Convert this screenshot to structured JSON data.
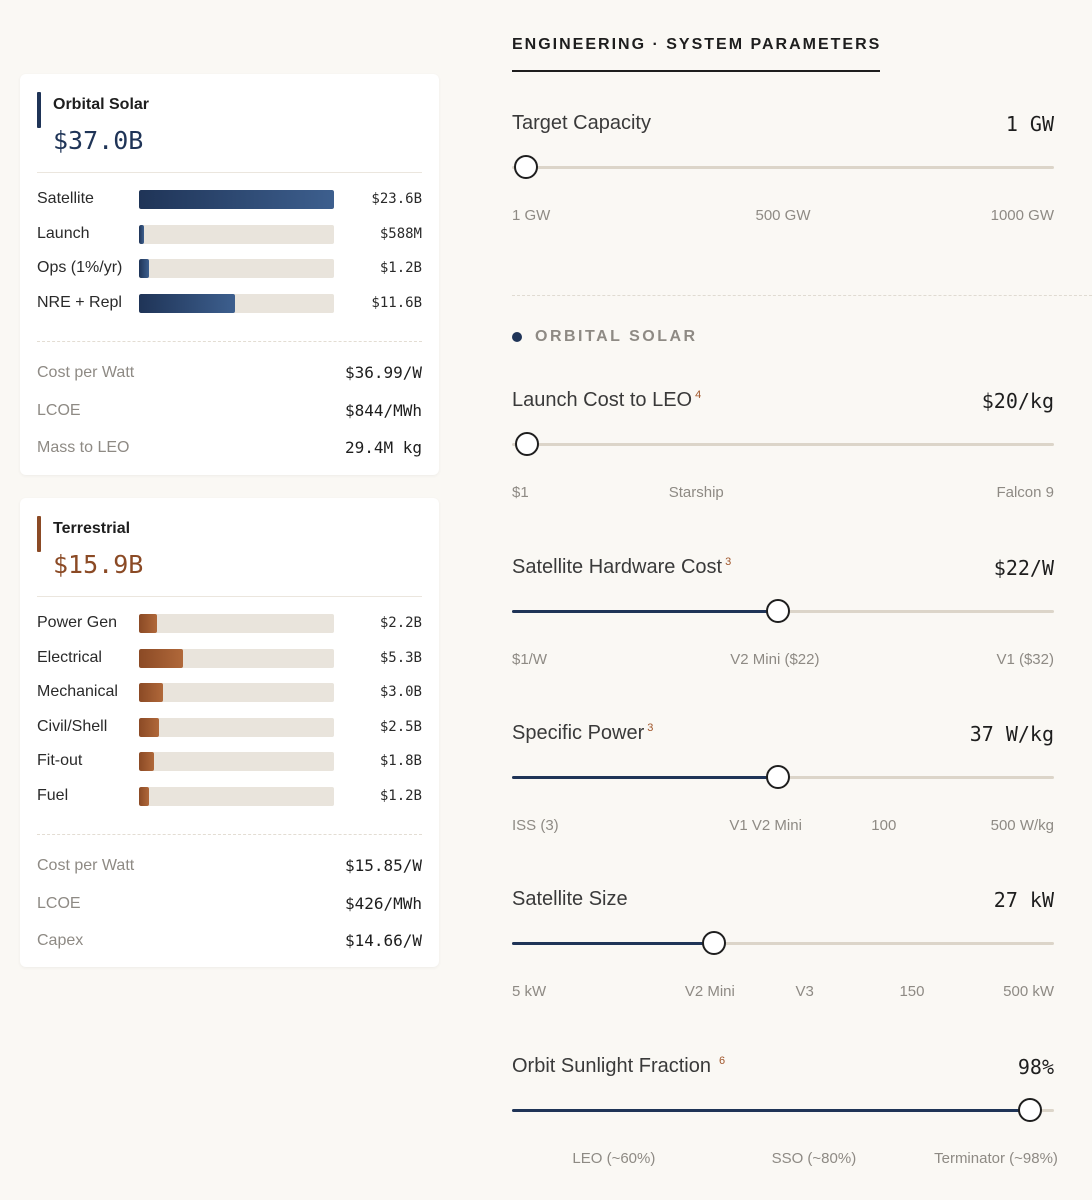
{
  "orbital": {
    "title": "Orbital Solar",
    "total": "$37.0B",
    "accent_color": "#1f3457",
    "bars": [
      {
        "label": "Satellite",
        "value": "$23.6B",
        "fraction": 1.0
      },
      {
        "label": "Launch",
        "value": "$588M",
        "fraction": 0.025
      },
      {
        "label": "Ops (1%/yr)",
        "value": "$1.2B",
        "fraction": 0.05
      },
      {
        "label": "NRE + Repl",
        "value": "$11.6B",
        "fraction": 0.49
      }
    ],
    "metrics": [
      {
        "label": "Cost per Watt",
        "value": "$36.99/W"
      },
      {
        "label": "LCOE",
        "value": "$844/MWh"
      },
      {
        "label": "Mass to LEO",
        "value": "29.4M kg"
      }
    ]
  },
  "terrestrial": {
    "title": "Terrestrial",
    "total": "$15.9B",
    "accent_color": "#8b4a25",
    "bars": [
      {
        "label": "Power Gen",
        "value": "$2.2B",
        "fraction": 0.09
      },
      {
        "label": "Electrical",
        "value": "$5.3B",
        "fraction": 0.225
      },
      {
        "label": "Mechanical",
        "value": "$3.0B",
        "fraction": 0.125
      },
      {
        "label": "Civil/Shell",
        "value": "$2.5B",
        "fraction": 0.105
      },
      {
        "label": "Fit-out",
        "value": "$1.8B",
        "fraction": 0.075
      },
      {
        "label": "Fuel",
        "value": "$1.2B",
        "fraction": 0.05
      }
    ],
    "metrics": [
      {
        "label": "Cost per Watt",
        "value": "$15.85/W"
      },
      {
        "label": "LCOE",
        "value": "$426/MWh"
      },
      {
        "label": "Capex",
        "value": "$14.66/W"
      }
    ]
  },
  "panel": {
    "heading": "ENGINEERING · SYSTEM PARAMETERS",
    "section_label": "ORBITAL SOLAR"
  },
  "params": [
    {
      "name": "target-capacity",
      "label": "Target Capacity",
      "sup": "",
      "value": "1 GW",
      "position": 0.025,
      "filled": false,
      "ticks": [
        {
          "text": "1 GW",
          "at": 0,
          "align": "left"
        },
        {
          "text": "500 GW",
          "at": 0.5,
          "align": "center"
        },
        {
          "text": "1000 GW",
          "at": 1,
          "align": "right"
        }
      ]
    },
    {
      "name": "launch-cost",
      "label": "Launch Cost to LEO",
      "sup": "4",
      "value": "$20/kg",
      "position": 0.028,
      "filled": false,
      "ticks": [
        {
          "text": "$1",
          "at": 0,
          "align": "left"
        },
        {
          "text": "Starship",
          "at": 0.34,
          "align": "center"
        },
        {
          "text": "Falcon 9",
          "at": 1,
          "align": "right"
        }
      ]
    },
    {
      "name": "satellite-hardware-cost",
      "label": "Satellite Hardware Cost",
      "sup": "3",
      "value": "$22/W",
      "position": 0.49,
      "filled": true,
      "ticks": [
        {
          "text": "$1/W",
          "at": 0,
          "align": "left"
        },
        {
          "text": "V2 Mini ($22)",
          "at": 0.485,
          "align": "center"
        },
        {
          "text": "V1 ($32)",
          "at": 1,
          "align": "right"
        }
      ]
    },
    {
      "name": "specific-power",
      "label": "Specific Power",
      "sup": "3",
      "value": "37 W/kg",
      "position": 0.49,
      "filled": true,
      "ticks": [
        {
          "text": "ISS (3)",
          "at": 0,
          "align": "left"
        },
        {
          "text": "V1 V2 Mini",
          "at": 0.468,
          "align": "center"
        },
        {
          "text": "100",
          "at": 0.686,
          "align": "center"
        },
        {
          "text": "500 W/kg",
          "at": 1,
          "align": "right"
        }
      ]
    },
    {
      "name": "satellite-size",
      "label": "Satellite Size",
      "sup": "",
      "value": "27 kW",
      "position": 0.372,
      "filled": true,
      "ticks": [
        {
          "text": "5 kW",
          "at": 0,
          "align": "left"
        },
        {
          "text": "V2 Mini",
          "at": 0.365,
          "align": "center"
        },
        {
          "text": "V3",
          "at": 0.54,
          "align": "center"
        },
        {
          "text": "150",
          "at": 0.738,
          "align": "center"
        },
        {
          "text": "500 kW",
          "at": 1,
          "align": "right"
        }
      ]
    },
    {
      "name": "orbit-sunlight-fraction",
      "label": "Orbit Sunlight Fraction",
      "sup": "6",
      "value": "98%",
      "position": 0.955,
      "filled": true,
      "ticks": [
        {
          "text": "LEO (~60%)",
          "at": 0.188,
          "align": "center"
        },
        {
          "text": "SSO (~80%)",
          "at": 0.557,
          "align": "center"
        },
        {
          "text": "Terminator (~98%)",
          "at": 0.893,
          "align": "center"
        }
      ]
    }
  ]
}
